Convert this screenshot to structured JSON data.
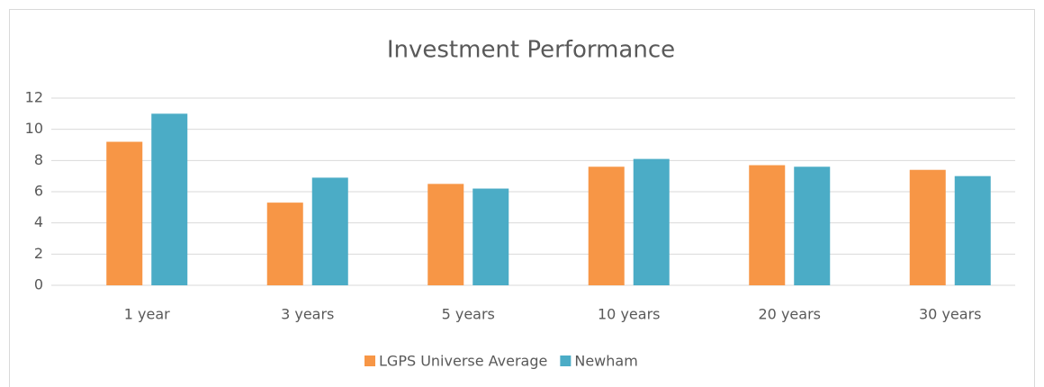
{
  "chart_data": {
    "type": "bar",
    "title": "Investment Performance",
    "categories": [
      "1 year",
      "3 years",
      "5 years",
      "10 years",
      "20 years",
      "30 years"
    ],
    "series": [
      {
        "name": "LGPS Universe Average",
        "color": "#f79646",
        "values": [
          9.2,
          5.3,
          6.5,
          7.6,
          7.7,
          7.4
        ]
      },
      {
        "name": "Newham",
        "color": "#4bacc6",
        "values": [
          11.0,
          6.9,
          6.2,
          8.1,
          7.6,
          7.0
        ]
      }
    ],
    "ylim": [
      0,
      12
    ],
    "yticks": [
      0,
      2,
      4,
      6,
      8,
      10,
      12
    ],
    "grid": true,
    "legend": "bottom"
  }
}
